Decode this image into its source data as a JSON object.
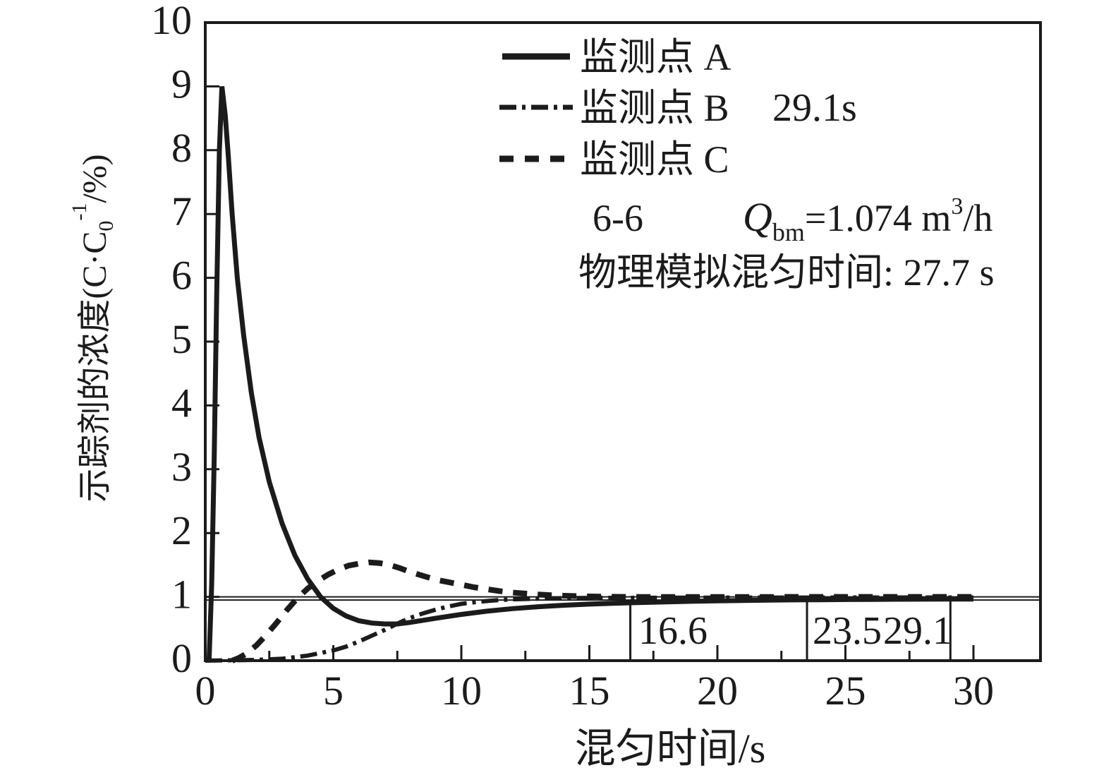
{
  "chart_data": {
    "type": "line",
    "xlabel": "混匀时间/s",
    "ylabel": "示踪剂的浓度(C·C0-1/%)",
    "ylabel_parts": {
      "prefix": "示踪剂的浓度(C·C",
      "sub": "0",
      "sup": "-1",
      "suffix": "/%)"
    },
    "xlim": [
      0,
      32.6
    ],
    "ylim": [
      0,
      10
    ],
    "xticks_major": [
      0,
      5,
      10,
      15,
      20,
      25,
      30
    ],
    "xticks_minor": [
      2.5,
      7.5,
      12.5,
      17.5,
      22.5,
      27.5
    ],
    "yticks": [
      0,
      1,
      2,
      3,
      4,
      5,
      6,
      7,
      8,
      9,
      10
    ],
    "xtick_labels": [
      "0",
      "5",
      "10",
      "15",
      "20",
      "25",
      "30"
    ],
    "ytick_labels": [
      "0",
      "1",
      "2",
      "3",
      "4",
      "5",
      "6",
      "7",
      "8",
      "9",
      "10"
    ],
    "reference_lines_y": [
      1.0,
      0.95
    ],
    "marker_lines": [
      {
        "x": 16.6,
        "label": "16.6"
      },
      {
        "x": 23.5,
        "label": "23.5"
      },
      {
        "x": 29.1,
        "label": "29.1"
      }
    ],
    "series": [
      {
        "name": "监测点 A",
        "style": "solid",
        "points": [
          [
            0.15,
            0
          ],
          [
            0.25,
            1.2
          ],
          [
            0.35,
            3.2
          ],
          [
            0.45,
            5.8
          ],
          [
            0.55,
            8.0
          ],
          [
            0.65,
            9.0
          ],
          [
            0.78,
            8.55
          ],
          [
            0.9,
            7.9
          ],
          [
            1.05,
            7.0
          ],
          [
            1.25,
            6.0
          ],
          [
            1.5,
            5.1
          ],
          [
            1.8,
            4.2
          ],
          [
            2.1,
            3.5
          ],
          [
            2.5,
            2.8
          ],
          [
            3.0,
            2.15
          ],
          [
            3.5,
            1.65
          ],
          [
            4.0,
            1.28
          ],
          [
            4.5,
            1.0
          ],
          [
            5.0,
            0.82
          ],
          [
            5.5,
            0.7
          ],
          [
            6.0,
            0.625
          ],
          [
            6.5,
            0.59
          ],
          [
            7.0,
            0.575
          ],
          [
            7.5,
            0.575
          ],
          [
            8.0,
            0.6
          ],
          [
            9,
            0.665
          ],
          [
            10,
            0.725
          ],
          [
            11,
            0.775
          ],
          [
            12,
            0.815
          ],
          [
            13,
            0.845
          ],
          [
            14,
            0.868
          ],
          [
            15,
            0.886
          ],
          [
            16,
            0.9
          ],
          [
            16.6,
            0.907
          ],
          [
            17,
            0.912
          ],
          [
            18,
            0.922
          ],
          [
            19,
            0.93
          ],
          [
            20,
            0.937
          ],
          [
            21,
            0.943
          ],
          [
            22,
            0.948
          ],
          [
            23,
            0.952
          ],
          [
            24,
            0.955
          ],
          [
            25,
            0.958
          ],
          [
            26,
            0.96
          ],
          [
            27,
            0.962
          ],
          [
            28,
            0.964
          ],
          [
            29,
            0.965
          ],
          [
            30,
            0.966
          ]
        ]
      },
      {
        "name": "监测点 B",
        "style": "dash-dot",
        "annotation": "29.1s",
        "points": [
          [
            0,
            0
          ],
          [
            1,
            0.005
          ],
          [
            2,
            0.012
          ],
          [
            3,
            0.03
          ],
          [
            4,
            0.08
          ],
          [
            5,
            0.16
          ],
          [
            5.5,
            0.22
          ],
          [
            6,
            0.3
          ],
          [
            6.5,
            0.39
          ],
          [
            7,
            0.48
          ],
          [
            7.6,
            0.6
          ],
          [
            8,
            0.67
          ],
          [
            8.5,
            0.74
          ],
          [
            9,
            0.8
          ],
          [
            9.5,
            0.85
          ],
          [
            10,
            0.89
          ],
          [
            10.5,
            0.915
          ],
          [
            11,
            0.935
          ],
          [
            11.5,
            0.95
          ],
          [
            12,
            0.96
          ],
          [
            13,
            0.972
          ],
          [
            14,
            0.979
          ],
          [
            15,
            0.983
          ],
          [
            16,
            0.985
          ],
          [
            17,
            0.986
          ],
          [
            18,
            0.987
          ],
          [
            20,
            0.988
          ],
          [
            22,
            0.989
          ],
          [
            24,
            0.989
          ],
          [
            26,
            0.99
          ],
          [
            28,
            0.99
          ],
          [
            29.1,
            0.99
          ],
          [
            30,
            0.99
          ]
        ]
      },
      {
        "name": "监测点 C",
        "style": "dashed",
        "points": [
          [
            1.05,
            0
          ],
          [
            1.3,
            0.04
          ],
          [
            1.6,
            0.11
          ],
          [
            2.0,
            0.24
          ],
          [
            2.4,
            0.41
          ],
          [
            2.8,
            0.6
          ],
          [
            3.2,
            0.8
          ],
          [
            3.6,
            0.98
          ],
          [
            4.0,
            1.13
          ],
          [
            4.4,
            1.25
          ],
          [
            4.8,
            1.35
          ],
          [
            5.2,
            1.43
          ],
          [
            5.6,
            1.49
          ],
          [
            6.0,
            1.52
          ],
          [
            6.4,
            1.54
          ],
          [
            6.8,
            1.53
          ],
          [
            7.2,
            1.5
          ],
          [
            7.6,
            1.45
          ],
          [
            8.0,
            1.39
          ],
          [
            8.5,
            1.33
          ],
          [
            9.0,
            1.27
          ],
          [
            9.5,
            1.23
          ],
          [
            10,
            1.19
          ],
          [
            10.5,
            1.15
          ],
          [
            11,
            1.12
          ],
          [
            11.5,
            1.09
          ],
          [
            12,
            1.068
          ],
          [
            12.5,
            1.052
          ],
          [
            13,
            1.038
          ],
          [
            13.5,
            1.027
          ],
          [
            14,
            1.018
          ],
          [
            14.5,
            1.012
          ],
          [
            15,
            1.007
          ],
          [
            16,
            1.001
          ],
          [
            17,
            0.999
          ],
          [
            18,
            0.998
          ],
          [
            20,
            0.998
          ],
          [
            22,
            0.999
          ],
          [
            24,
            1.0
          ],
          [
            26,
            1.0
          ],
          [
            28,
            1.0
          ],
          [
            30,
            1.0
          ]
        ]
      }
    ]
  },
  "legend": {
    "entries": [
      {
        "label": "监测点 A",
        "extra": ""
      },
      {
        "label": "监测点 B",
        "extra": "29.1s"
      },
      {
        "label": "监测点 C",
        "extra": ""
      }
    ]
  },
  "annotations": {
    "section": "6-6",
    "q_var": "Q",
    "q_sub": "bm",
    "q_mid": "=1.074 m",
    "q_sup": "3",
    "q_unit": "/h",
    "phys_time": "物理模拟混匀时间: 27.7 s"
  },
  "colors": {
    "ink": "#1b1b1b",
    "background": "#ffffff"
  }
}
